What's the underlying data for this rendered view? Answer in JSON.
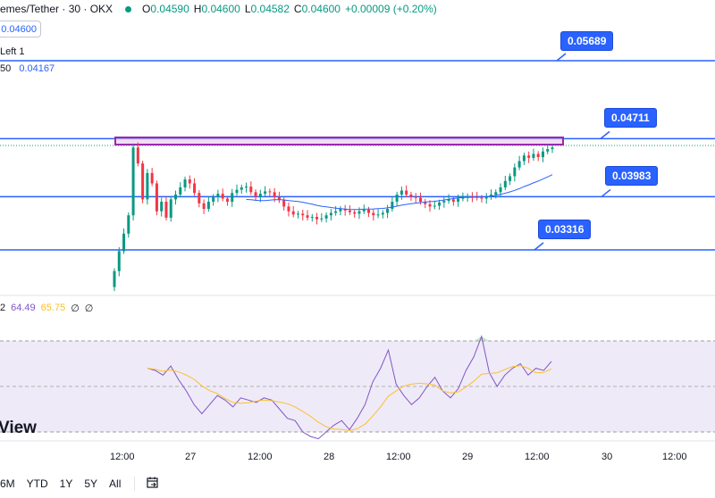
{
  "legend": {
    "title": "emes/Tether · 30 · OKX",
    "open_label": "O",
    "open": "0.04590",
    "high_label": "H",
    "high": "0.04600",
    "low_label": "L",
    "low": "0.04582",
    "close_label": "C",
    "close": "0.04600",
    "change": "+0.00009 (+0.20%)"
  },
  "price_box": "0.04600",
  "indicator1": "Left 1",
  "indicator2": {
    "prefix": "50",
    "value": "0.04167"
  },
  "rsi_legend": {
    "prefix": "2",
    "rsi": "64.49",
    "rsi_ma": "65.75",
    "v1": "∅",
    "v2": "∅"
  },
  "levels": [
    {
      "label": "0.05689",
      "value": 0.05689
    },
    {
      "label": "0.04711",
      "value": 0.04711
    },
    {
      "label": "0.03983",
      "value": 0.03983
    },
    {
      "label": "0.03316",
      "value": 0.03316
    }
  ],
  "watermark": "View",
  "x_ticks": [
    "12:00",
    "27",
    "12:00",
    "28",
    "12:00",
    "29",
    "12:00",
    "30",
    "12:00"
  ],
  "range_buttons": [
    "6M",
    "YTD",
    "1Y",
    "5Y",
    "All"
  ],
  "colors": {
    "up": "#089981",
    "down": "#f23645",
    "level_line": "#2962ff",
    "ma_line": "#2962ff",
    "rsi_line": "#7e57c2",
    "rsi_ma": "#fbc02d",
    "rect_stroke": "#9c27b0",
    "rsi_band": "#efeaf8"
  },
  "icons": {
    "compare": "calendar-range-icon"
  },
  "chart_data": {
    "type": "candlestick",
    "pair": "emes/Tether",
    "interval": "30",
    "exchange": "OKX",
    "candles_close_approx": [
      0.0305,
      0.033,
      0.0352,
      0.0375,
      0.046,
      0.044,
      0.0395,
      0.0428,
      0.0415,
      0.038,
      0.0392,
      0.0372,
      0.0395,
      0.0401,
      0.041,
      0.042,
      0.0415,
      0.0403,
      0.039,
      0.0383,
      0.0392,
      0.0398,
      0.0402,
      0.0396,
      0.0392,
      0.0403,
      0.0407,
      0.041,
      0.0411,
      0.0404,
      0.0398,
      0.0402,
      0.0405,
      0.0404,
      0.0398,
      0.0394,
      0.0386,
      0.038,
      0.0376,
      0.0377,
      0.0375,
      0.0372,
      0.0373,
      0.037,
      0.0371,
      0.0375,
      0.0378,
      0.038,
      0.0383,
      0.0381,
      0.0379,
      0.0377,
      0.038,
      0.0382,
      0.0378,
      0.0375,
      0.0376,
      0.0378,
      0.0383,
      0.0392,
      0.0401,
      0.0406,
      0.0401,
      0.0398,
      0.0397,
      0.0392,
      0.0389,
      0.0386,
      0.0387,
      0.0391,
      0.0393,
      0.0395,
      0.0392,
      0.0396,
      0.0397,
      0.0399,
      0.0398,
      0.0397,
      0.0396,
      0.0398,
      0.0401,
      0.0404,
      0.041,
      0.0418,
      0.0424,
      0.0435,
      0.0443,
      0.045,
      0.0447,
      0.0452,
      0.0448,
      0.0455,
      0.0458,
      0.046
    ],
    "ma_line": {
      "start_value": 0.0386,
      "end_value": 0.04167
    },
    "rsi": {
      "values_approx": [
        58,
        57,
        55,
        59,
        53,
        48,
        42,
        38,
        42,
        46,
        44,
        41,
        45,
        44,
        43,
        45,
        44,
        40,
        36,
        35,
        30,
        28,
        27,
        30,
        33,
        35,
        31,
        36,
        42,
        52,
        58,
        66,
        51,
        46,
        42,
        45,
        50,
        54,
        48,
        45,
        49,
        57,
        63,
        72,
        56,
        50,
        55,
        58,
        60,
        55,
        58,
        57,
        61
      ],
      "rsi_value": 64.49,
      "ma_value": 65.75,
      "band": [
        30,
        70
      ],
      "ylim": [
        0,
        100
      ]
    },
    "x_ticks": [
      "12:00",
      "27",
      "12:00",
      "28",
      "12:00",
      "29",
      "12:00",
      "30",
      "12:00"
    ],
    "horizontal_levels": [
      0.05689,
      0.04711,
      0.03983,
      0.03316
    ]
  }
}
